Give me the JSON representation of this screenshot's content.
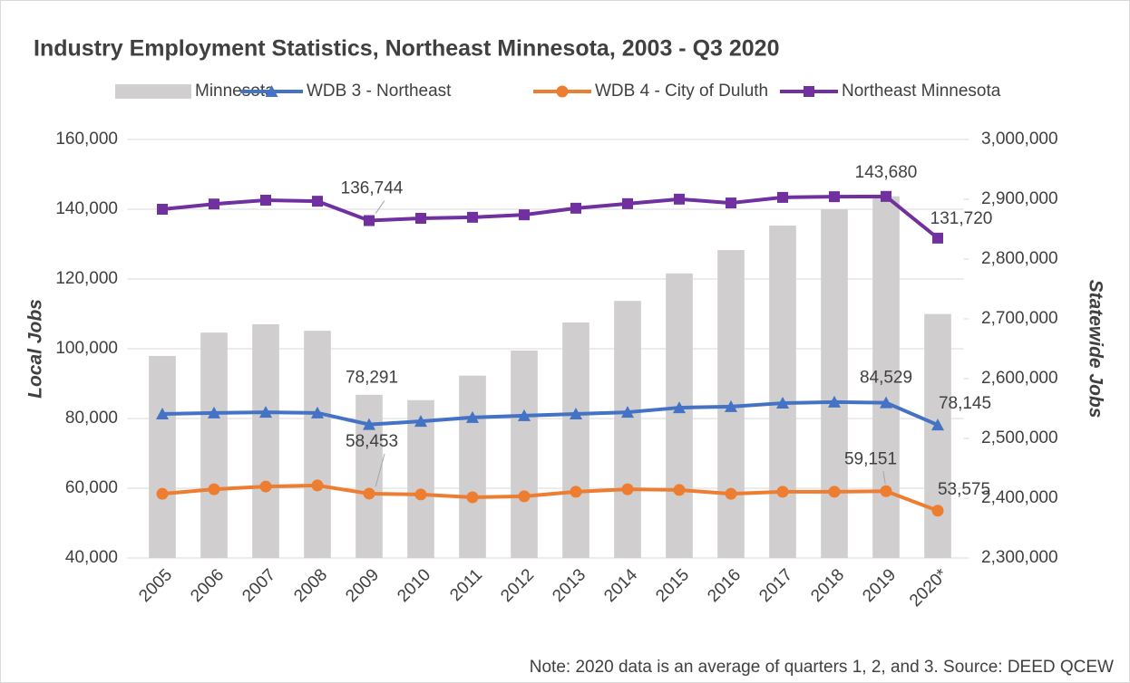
{
  "chart_data": {
    "type": "bar_line",
    "title": "Industry Employment Statistics, Northeast Minnesota, 2003 - Q3 2020",
    "ylabel": "Local Jobs",
    "y2label": "Statewide Jobs",
    "note": "Note: 2020 data is an average of quarters 1, 2, and 3. Source: DEED QCEW",
    "categories": [
      "2005",
      "2006",
      "2007",
      "2008",
      "2009",
      "2010",
      "2011",
      "2012",
      "2013",
      "2014",
      "2015",
      "2016",
      "2017",
      "2018",
      "2019",
      "2020*"
    ],
    "ylim": [
      40000,
      160000
    ],
    "yticks": [
      {
        "value": 40000,
        "label": "40,000"
      },
      {
        "value": 60000,
        "label": "60,000"
      },
      {
        "value": 80000,
        "label": "80,000"
      },
      {
        "value": 100000,
        "label": "100,000"
      },
      {
        "value": 120000,
        "label": "120,000"
      },
      {
        "value": 140000,
        "label": "140,000"
      },
      {
        "value": 160000,
        "label": "160,000"
      }
    ],
    "y2lim": [
      2300000,
      3000000
    ],
    "y2ticks": [
      {
        "value": 2300000,
        "label": "2,300,000"
      },
      {
        "value": 2400000,
        "label": "2,400,000"
      },
      {
        "value": 2500000,
        "label": "2,500,000"
      },
      {
        "value": 2600000,
        "label": "2,600,000"
      },
      {
        "value": 2700000,
        "label": "2,700,000"
      },
      {
        "value": 2800000,
        "label": "2,800,000"
      },
      {
        "value": 2900000,
        "label": "2,900,000"
      },
      {
        "value": 3000000,
        "label": "3,000,000"
      }
    ],
    "grid": true,
    "legend": "top",
    "series": [
      {
        "name": "Minnesota",
        "type": "bar",
        "axis": "y2",
        "color": "#d0cece",
        "values": [
          2638000,
          2677000,
          2691000,
          2680000,
          2573000,
          2564000,
          2605000,
          2647000,
          2694000,
          2730000,
          2776000,
          2815000,
          2856000,
          2883000,
          2905000,
          2708000
        ]
      },
      {
        "name": "WDB 3 - Northeast",
        "type": "line",
        "marker": "triangle",
        "color": "#4472c4",
        "values": [
          81300,
          81600,
          81800,
          81600,
          78291,
          79200,
          80300,
          80800,
          81300,
          81800,
          83100,
          83400,
          84400,
          84700,
          84529,
          78145
        ],
        "value_labels": [
          null,
          null,
          null,
          null,
          "78,291",
          null,
          null,
          null,
          null,
          null,
          null,
          null,
          null,
          null,
          "84,529",
          "78,145"
        ]
      },
      {
        "name": "WDB 4 - City of Duluth",
        "type": "line",
        "marker": "circle",
        "color": "#ed7d31",
        "values": [
          58400,
          59700,
          60500,
          60800,
          58453,
          58200,
          57400,
          57700,
          59000,
          59700,
          59500,
          58400,
          59000,
          59000,
          59151,
          53575
        ],
        "value_labels": [
          null,
          null,
          null,
          null,
          "58,453",
          null,
          null,
          null,
          null,
          null,
          null,
          null,
          null,
          null,
          "59,151",
          "53,575"
        ]
      },
      {
        "name": "Northeast Minnesota",
        "type": "line",
        "marker": "square",
        "color": "#7030a0",
        "values": [
          140000,
          141500,
          142600,
          142300,
          136744,
          137400,
          137700,
          138400,
          140300,
          141600,
          142900,
          141800,
          143400,
          143600,
          143680,
          131720
        ],
        "value_labels": [
          null,
          null,
          null,
          null,
          "136,744",
          null,
          null,
          null,
          null,
          null,
          null,
          null,
          null,
          null,
          "143,680",
          "131,720"
        ]
      }
    ]
  }
}
